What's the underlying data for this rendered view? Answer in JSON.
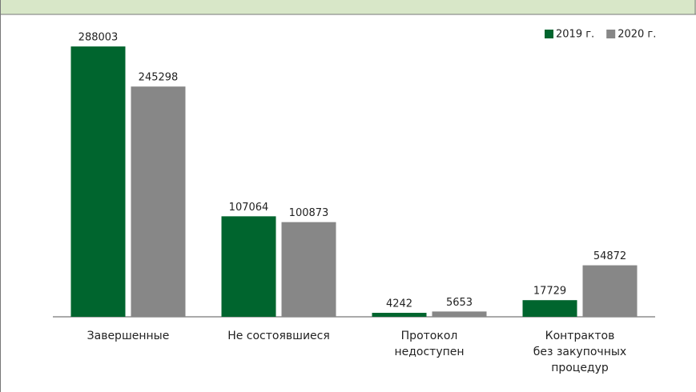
{
  "chart_data": {
    "type": "bar",
    "categories": [
      "Завершенные",
      "Не состоявшиеся",
      "Протокол\nнедоступен",
      "Контрактов\nбез закупочных\nпроцедур"
    ],
    "series": [
      {
        "name": "2019 г.",
        "color": "#00652e",
        "values": [
          288003,
          107064,
          4242,
          17729
        ]
      },
      {
        "name": "2020 г.",
        "color": "#878787",
        "values": [
          245298,
          100873,
          5653,
          54872
        ]
      }
    ],
    "ylim": [
      0,
      300000
    ],
    "legend": "top-right"
  }
}
